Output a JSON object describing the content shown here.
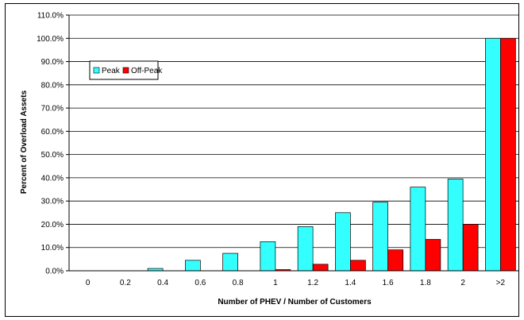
{
  "chart_data": {
    "type": "bar",
    "xlabel": "Number of PHEV  / Number of Customers",
    "ylabel": "Percent of Overload Assets",
    "ylim": [
      0,
      110
    ],
    "ytick_step": 10,
    "ytick_format": "percent_one_decimal",
    "categories": [
      "0",
      "0.2",
      "0.4",
      "0.6",
      "0.8",
      "1",
      "1.2",
      "1.4",
      "1.6",
      "1.8",
      "2",
      ">2"
    ],
    "series": [
      {
        "name": "Peak",
        "color": "#33ffff",
        "values": [
          0,
          0,
          1,
          4.5,
          7.5,
          12.5,
          19,
          25,
          29.5,
          36,
          39.5,
          100
        ]
      },
      {
        "name": "Off-Peak",
        "color": "#ff0000",
        "values": [
          0,
          0,
          0,
          0,
          0,
          0.5,
          2.8,
          4.5,
          9,
          13.5,
          20,
          100
        ]
      }
    ],
    "legend_position": "top-left",
    "grid": "horizontal"
  }
}
